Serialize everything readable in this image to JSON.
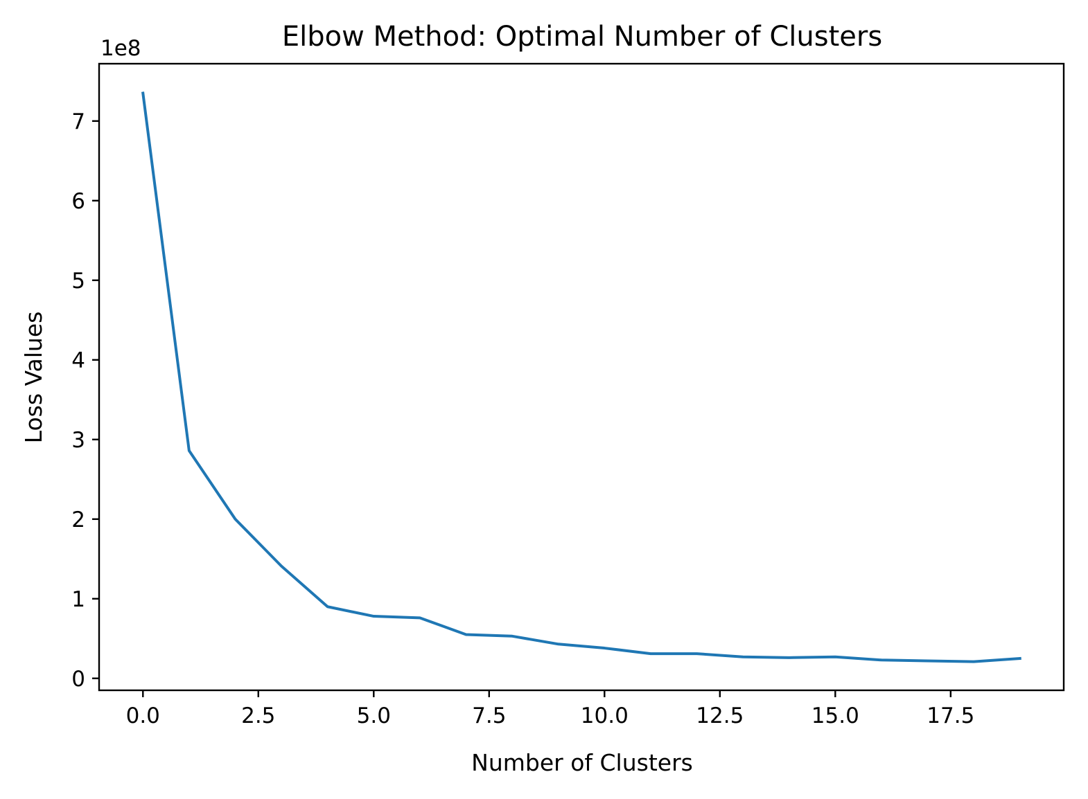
{
  "chart_data": {
    "type": "line",
    "title": "Elbow Method: Optimal Number of Clusters",
    "xlabel": "Number of Clusters",
    "ylabel": "Loss Values",
    "y_offset_label": "1e8",
    "y_scale_factor": 100000000,
    "xlim": [
      -0.95,
      19.95
    ],
    "ylim": [
      -15000000,
      772000000
    ],
    "x_ticks": [
      {
        "value": 0.0,
        "label": "0.0"
      },
      {
        "value": 2.5,
        "label": "2.5"
      },
      {
        "value": 5.0,
        "label": "5.0"
      },
      {
        "value": 7.5,
        "label": "7.5"
      },
      {
        "value": 10.0,
        "label": "10.0"
      },
      {
        "value": 12.5,
        "label": "12.5"
      },
      {
        "value": 15.0,
        "label": "15.0"
      },
      {
        "value": 17.5,
        "label": "17.5"
      }
    ],
    "y_ticks": [
      {
        "value": 0,
        "label": "0"
      },
      {
        "value": 100000000,
        "label": "1"
      },
      {
        "value": 200000000,
        "label": "2"
      },
      {
        "value": 300000000,
        "label": "3"
      },
      {
        "value": 400000000,
        "label": "4"
      },
      {
        "value": 500000000,
        "label": "5"
      },
      {
        "value": 600000000,
        "label": "6"
      },
      {
        "value": 700000000,
        "label": "7"
      }
    ],
    "grid": false,
    "series": [
      {
        "color": "#1f77b4",
        "x": [
          0,
          1,
          2,
          3,
          4,
          5,
          6,
          7,
          8,
          9,
          10,
          11,
          12,
          13,
          14,
          15,
          16,
          17,
          18,
          19
        ],
        "y": [
          735000000,
          286000000,
          200000000,
          141000000,
          90000000,
          78000000,
          76000000,
          55000000,
          53000000,
          43000000,
          38000000,
          31000000,
          31000000,
          27000000,
          26000000,
          27000000,
          23000000,
          22000000,
          21000000,
          25000000
        ]
      }
    ]
  }
}
